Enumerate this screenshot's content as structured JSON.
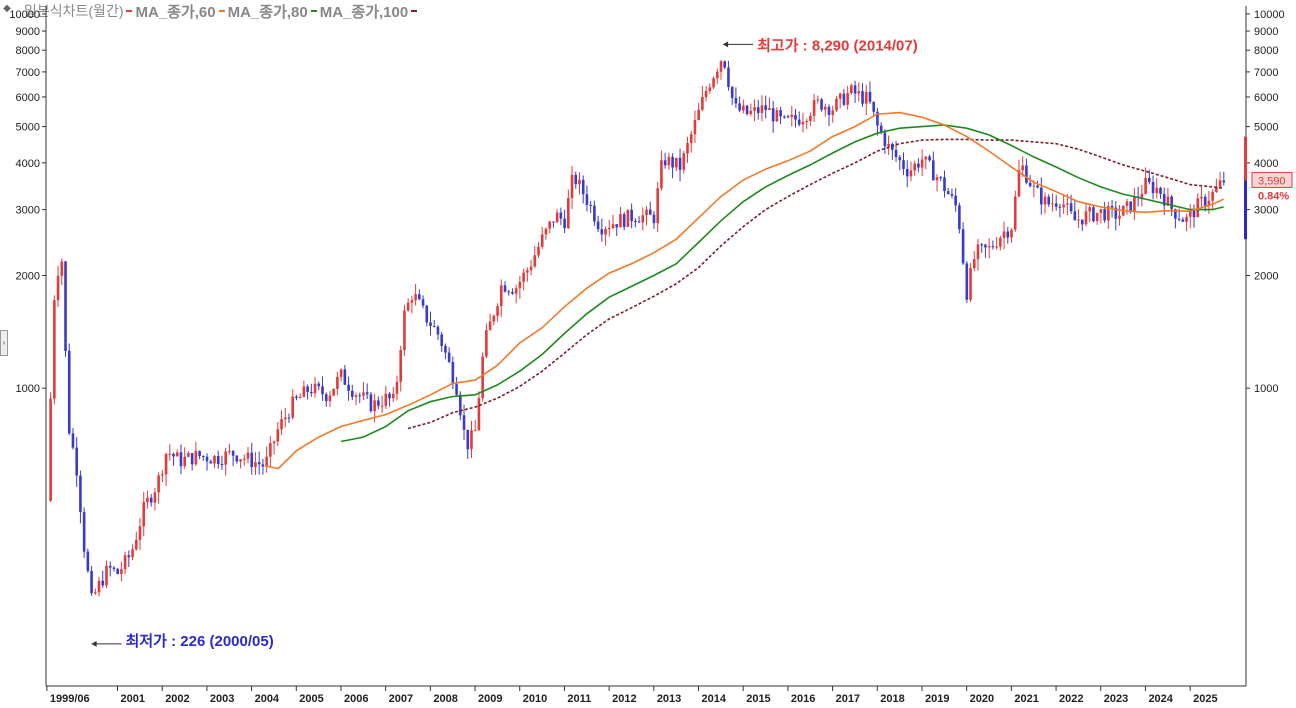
{
  "header": {
    "title": "일본식차트(월간)",
    "ma60_label": "MA_종가,60",
    "ma80_label": "MA_종가,80",
    "ma100_label": "MA_종가,100"
  },
  "colors": {
    "up": "#e23b3b",
    "down": "#3a3acb",
    "ma60": "#f07a2a",
    "ma80": "#1e8a1e",
    "ma100": "#7a1f2a",
    "high_text": "#e23b3b",
    "low_text": "#2a2acb"
  },
  "annotations": {
    "high_label": "최고가 : 8,290 (2014/07)",
    "low_label": "최저가 : 226 (2000/05)",
    "last_price": "3,590",
    "last_change": "0.84%"
  },
  "chart_data": {
    "type": "candlestick",
    "title": "일본식차트(월간)",
    "y_scale": "log",
    "ylim": [
      160,
      10500
    ],
    "y_ticks": [
      1000,
      2000,
      3000,
      4000,
      5000,
      6000,
      7000,
      8000,
      9000,
      10000
    ],
    "y_tick_labels": [
      "1000",
      "2000",
      "3000",
      "4000",
      "5000",
      "6000",
      "7000",
      "8000",
      "9000",
      "10000"
    ],
    "x_tick_labels": [
      "1999/06",
      "2001",
      "2002",
      "2003",
      "2004",
      "2005",
      "2006",
      "2007",
      "2008",
      "2009",
      "2010",
      "2011",
      "2012",
      "2013",
      "2014",
      "2015",
      "2016",
      "2017",
      "2018",
      "2019",
      "2020",
      "2021",
      "2022",
      "2023",
      "2024",
      "2025"
    ],
    "x_tick_years": [
      1999.42,
      2001,
      2002,
      2003,
      2004,
      2005,
      2006,
      2007,
      2008,
      2009,
      2010,
      2011,
      2012,
      2013,
      2014,
      2015,
      2016,
      2017,
      2018,
      2019,
      2020,
      2021,
      2022,
      2023,
      2024,
      2025
    ],
    "xlim": [
      1999.4,
      2026.25
    ],
    "close_path": [
      [
        1999.42,
        500
      ],
      [
        1999.6,
        1950
      ],
      [
        1999.75,
        2250
      ],
      [
        1999.9,
        800
      ],
      [
        2000.1,
        600
      ],
      [
        2000.25,
        380
      ],
      [
        2000.42,
        270
      ],
      [
        2000.6,
        300
      ],
      [
        2000.8,
        330
      ],
      [
        2001.0,
        320
      ],
      [
        2001.3,
        360
      ],
      [
        2001.6,
        480
      ],
      [
        2001.9,
        560
      ],
      [
        2002.1,
        680
      ],
      [
        2002.4,
        640
      ],
      [
        2002.8,
        660
      ],
      [
        2003.2,
        650
      ],
      [
        2003.6,
        670
      ],
      [
        2004.0,
        640
      ],
      [
        2004.3,
        620
      ],
      [
        2004.6,
        780
      ],
      [
        2004.9,
        900
      ],
      [
        2005.3,
        1000
      ],
      [
        2005.7,
        960
      ],
      [
        2006.0,
        1080
      ],
      [
        2006.3,
        980
      ],
      [
        2006.7,
        900
      ],
      [
        2007.0,
        940
      ],
      [
        2007.2,
        920
      ],
      [
        2007.4,
        1550
      ],
      [
        2007.6,
        1800
      ],
      [
        2007.9,
        1550
      ],
      [
        2008.2,
        1380
      ],
      [
        2008.6,
        1000
      ],
      [
        2008.8,
        700
      ],
      [
        2009.0,
        760
      ],
      [
        2009.2,
        1300
      ],
      [
        2009.6,
        1900
      ],
      [
        2009.9,
        1850
      ],
      [
        2010.2,
        2100
      ],
      [
        2010.5,
        2500
      ],
      [
        2010.8,
        2900
      ],
      [
        2011.0,
        2800
      ],
      [
        2011.2,
        3700
      ],
      [
        2011.5,
        3200
      ],
      [
        2011.8,
        2700
      ],
      [
        2012.2,
        2800
      ],
      [
        2012.6,
        2900
      ],
      [
        2013.0,
        2850
      ],
      [
        2013.2,
        4100
      ],
      [
        2013.6,
        3900
      ],
      [
        2013.9,
        5000
      ],
      [
        2014.2,
        6400
      ],
      [
        2014.55,
        7800
      ],
      [
        2014.8,
        5600
      ],
      [
        2015.1,
        5400
      ],
      [
        2015.5,
        5600
      ],
      [
        2015.9,
        5100
      ],
      [
        2016.3,
        5300
      ],
      [
        2016.7,
        5800
      ],
      [
        2017.0,
        5600
      ],
      [
        2017.4,
        6200
      ],
      [
        2017.8,
        5900
      ],
      [
        2018.0,
        5000
      ],
      [
        2018.3,
        4300
      ],
      [
        2018.7,
        3800
      ],
      [
        2019.0,
        4100
      ],
      [
        2019.4,
        3600
      ],
      [
        2019.8,
        3000
      ],
      [
        2020.0,
        1800
      ],
      [
        2020.2,
        2300
      ],
      [
        2020.5,
        2350
      ],
      [
        2020.8,
        2600
      ],
      [
        2021.0,
        2700
      ],
      [
        2021.2,
        4000
      ],
      [
        2021.5,
        3400
      ],
      [
        2021.8,
        3100
      ],
      [
        2022.1,
        3200
      ],
      [
        2022.4,
        2800
      ],
      [
        2022.7,
        2900
      ],
      [
        2023.0,
        2950
      ],
      [
        2023.4,
        2900
      ],
      [
        2023.7,
        3100
      ],
      [
        2024.0,
        3500
      ],
      [
        2024.3,
        3400
      ],
      [
        2024.6,
        3000
      ],
      [
        2024.9,
        2800
      ],
      [
        2025.2,
        3100
      ],
      [
        2025.5,
        3300
      ],
      [
        2025.75,
        3590
      ]
    ],
    "ma60": [
      [
        2004.3,
        620
      ],
      [
        2004.6,
        610
      ],
      [
        2005.0,
        680
      ],
      [
        2005.5,
        740
      ],
      [
        2006.0,
        790
      ],
      [
        2006.5,
        820
      ],
      [
        2007.0,
        850
      ],
      [
        2007.5,
        900
      ],
      [
        2008.0,
        960
      ],
      [
        2008.5,
        1030
      ],
      [
        2009.0,
        1050
      ],
      [
        2009.5,
        1150
      ],
      [
        2010.0,
        1320
      ],
      [
        2010.5,
        1450
      ],
      [
        2011.0,
        1650
      ],
      [
        2011.5,
        1850
      ],
      [
        2012.0,
        2030
      ],
      [
        2012.5,
        2150
      ],
      [
        2013.0,
        2300
      ],
      [
        2013.5,
        2500
      ],
      [
        2014.0,
        2850
      ],
      [
        2014.5,
        3250
      ],
      [
        2015.0,
        3600
      ],
      [
        2015.5,
        3850
      ],
      [
        2016.0,
        4050
      ],
      [
        2016.5,
        4300
      ],
      [
        2017.0,
        4700
      ],
      [
        2017.5,
        5000
      ],
      [
        2018.0,
        5400
      ],
      [
        2018.5,
        5450
      ],
      [
        2019.0,
        5300
      ],
      [
        2019.5,
        5050
      ],
      [
        2020.0,
        4700
      ],
      [
        2020.5,
        4300
      ],
      [
        2021.0,
        3900
      ],
      [
        2021.5,
        3550
      ],
      [
        2022.0,
        3350
      ],
      [
        2022.5,
        3150
      ],
      [
        2023.0,
        3050
      ],
      [
        2023.5,
        2980
      ],
      [
        2024.0,
        2950
      ],
      [
        2024.5,
        2980
      ],
      [
        2025.0,
        2970
      ],
      [
        2025.5,
        3100
      ],
      [
        2025.75,
        3200
      ]
    ],
    "ma80": [
      [
        2006.0,
        720
      ],
      [
        2006.5,
        740
      ],
      [
        2007.0,
        790
      ],
      [
        2007.5,
        870
      ],
      [
        2008.0,
        920
      ],
      [
        2008.5,
        950
      ],
      [
        2009.0,
        960
      ],
      [
        2009.5,
        1020
      ],
      [
        2010.0,
        1110
      ],
      [
        2010.5,
        1230
      ],
      [
        2011.0,
        1400
      ],
      [
        2011.5,
        1580
      ],
      [
        2012.0,
        1750
      ],
      [
        2012.5,
        1870
      ],
      [
        2013.0,
        2000
      ],
      [
        2013.5,
        2150
      ],
      [
        2014.0,
        2450
      ],
      [
        2014.5,
        2800
      ],
      [
        2015.0,
        3150
      ],
      [
        2015.5,
        3450
      ],
      [
        2016.0,
        3700
      ],
      [
        2016.5,
        3950
      ],
      [
        2017.0,
        4250
      ],
      [
        2017.5,
        4550
      ],
      [
        2018.0,
        4800
      ],
      [
        2018.5,
        4950
      ],
      [
        2019.0,
        5000
      ],
      [
        2019.5,
        5050
      ],
      [
        2020.0,
        4950
      ],
      [
        2020.5,
        4750
      ],
      [
        2021.0,
        4450
      ],
      [
        2021.5,
        4150
      ],
      [
        2022.0,
        3900
      ],
      [
        2022.5,
        3650
      ],
      [
        2023.0,
        3450
      ],
      [
        2023.5,
        3300
      ],
      [
        2024.0,
        3200
      ],
      [
        2024.5,
        3100
      ],
      [
        2025.0,
        3000
      ],
      [
        2025.5,
        3000
      ],
      [
        2025.75,
        3050
      ]
    ],
    "ma100": [
      [
        2007.5,
        780
      ],
      [
        2008.0,
        810
      ],
      [
        2008.5,
        860
      ],
      [
        2009.0,
        890
      ],
      [
        2009.5,
        940
      ],
      [
        2010.0,
        1010
      ],
      [
        2010.5,
        1110
      ],
      [
        2011.0,
        1240
      ],
      [
        2011.5,
        1390
      ],
      [
        2012.0,
        1530
      ],
      [
        2012.5,
        1640
      ],
      [
        2013.0,
        1760
      ],
      [
        2013.5,
        1900
      ],
      [
        2014.0,
        2100
      ],
      [
        2014.5,
        2400
      ],
      [
        2015.0,
        2700
      ],
      [
        2015.5,
        3000
      ],
      [
        2016.0,
        3250
      ],
      [
        2016.5,
        3500
      ],
      [
        2017.0,
        3750
      ],
      [
        2017.5,
        4000
      ],
      [
        2018.0,
        4300
      ],
      [
        2018.5,
        4500
      ],
      [
        2019.0,
        4600
      ],
      [
        2019.5,
        4620
      ],
      [
        2020.0,
        4620
      ],
      [
        2020.5,
        4600
      ],
      [
        2021.0,
        4600
      ],
      [
        2021.5,
        4550
      ],
      [
        2022.0,
        4500
      ],
      [
        2022.5,
        4350
      ],
      [
        2023.0,
        4150
      ],
      [
        2023.5,
        3950
      ],
      [
        2024.0,
        3800
      ],
      [
        2024.5,
        3650
      ],
      [
        2025.0,
        3500
      ],
      [
        2025.5,
        3450
      ],
      [
        2025.75,
        3420
      ]
    ],
    "high_point": {
      "x": 2014.55,
      "y": 8290
    },
    "low_point": {
      "x": 2000.42,
      "y": 226
    },
    "grid": false,
    "legend": "top-left"
  }
}
